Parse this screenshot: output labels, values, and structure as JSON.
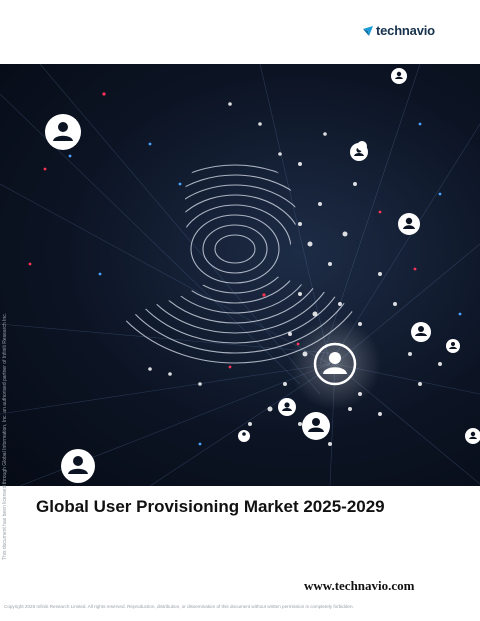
{
  "brand": {
    "name": "technavio",
    "color": "#17324d",
    "accent": "#1a9ad6"
  },
  "report": {
    "title": "Global User Provisioning Market 2025-2029"
  },
  "footer": {
    "website": "www.technavio.com",
    "copyright": "Copyright 2025 Infiniti Research Limited. All rights reserved. Reproduction, distribution, or dissemination of this document without written permission is completely forbidden."
  },
  "side_note": "This document has been licensed through Global Information, Inc. an authorised partner of Infiniti Research Inc.",
  "cover_image": {
    "description_icon": "fingerprint-network-icon",
    "background": "#0c1424"
  }
}
